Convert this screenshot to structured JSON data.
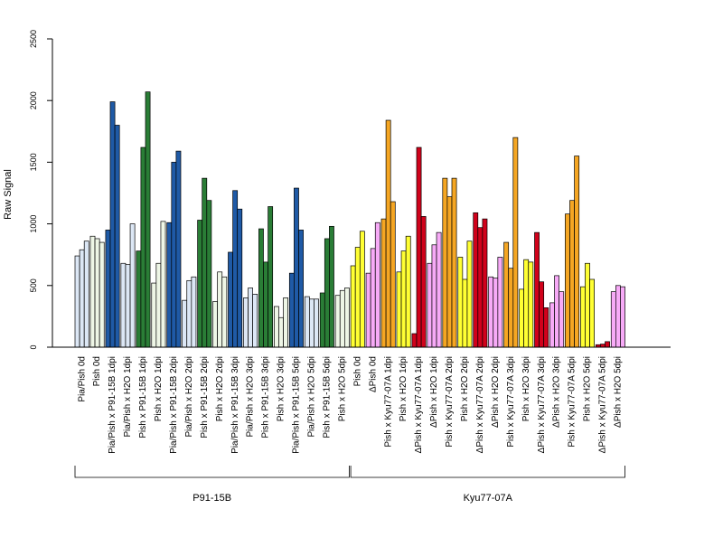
{
  "chart_data": {
    "type": "bar",
    "title": "",
    "ylabel": "Raw Signal",
    "ylim": [
      0,
      2500
    ],
    "yticks": [
      0,
      500,
      1000,
      1500,
      2000,
      2500
    ],
    "grid": false,
    "colors": {
      "light_blue": "#dce7f5",
      "blue": "#1f5aa6",
      "light_green": "#eef6e6",
      "green": "#2a7d36",
      "yellow": "#ffff33",
      "pink": "#f7aaf7",
      "orange": "#f5a623",
      "red": "#d0021b"
    },
    "groups": [
      {
        "label": "Pia/Pish 0d",
        "color": "light_blue",
        "values": [
          740,
          790,
          860
        ]
      },
      {
        "label": "Pish 0d",
        "color": "light_green",
        "values": [
          900,
          880,
          850
        ]
      },
      {
        "label": "Pia/Pish x P91-15B 1dpi",
        "color": "blue",
        "values": [
          950,
          1990,
          1800
        ]
      },
      {
        "label": "Pia/Pish x H2O 1dpi",
        "color": "light_blue",
        "values": [
          680,
          670,
          1000
        ]
      },
      {
        "label": "Pish x P91-15B 1dpi",
        "color": "green",
        "values": [
          780,
          1620,
          2070
        ]
      },
      {
        "label": "Pish x H2O 1dpi",
        "color": "light_green",
        "values": [
          520,
          680,
          1020
        ]
      },
      {
        "label": "Pia/Pish x P91-15B 2dpi",
        "color": "blue",
        "values": [
          1010,
          1500,
          1590
        ]
      },
      {
        "label": "Pia/Pish x H2O 2dpi",
        "color": "light_blue",
        "values": [
          380,
          540,
          570
        ]
      },
      {
        "label": "Pish x P91-15B 2dpi",
        "color": "green",
        "values": [
          1030,
          1370,
          1190
        ]
      },
      {
        "label": "Pish x H2O 2dpi",
        "color": "light_green",
        "values": [
          370,
          610,
          570
        ]
      },
      {
        "label": "Pia/Pish x P91-15B 3dpi",
        "color": "blue",
        "values": [
          770,
          1270,
          1120
        ]
      },
      {
        "label": "Pia/Pish x H2O 3dpi",
        "color": "light_blue",
        "values": [
          400,
          480,
          430
        ]
      },
      {
        "label": "Pish x P91-15B 3dpi",
        "color": "green",
        "values": [
          960,
          690,
          1140
        ]
      },
      {
        "label": "Pish x H2O 3dpi",
        "color": "light_green",
        "values": [
          330,
          240,
          400
        ]
      },
      {
        "label": "Pia/Pish x P91-15B 5dpi",
        "color": "blue",
        "values": [
          600,
          1290,
          950
        ]
      },
      {
        "label": "Pia/Pish x H2O 5dpi",
        "color": "light_blue",
        "values": [
          410,
          390,
          390
        ]
      },
      {
        "label": "Pish x P91-15B 5dpi",
        "color": "green",
        "values": [
          440,
          880,
          980
        ]
      },
      {
        "label": "Pish x H2O 5dpi",
        "color": "light_green",
        "values": [
          420,
          460,
          480
        ]
      },
      {
        "label": "Pish 0d",
        "color": "yellow",
        "values": [
          660,
          810,
          940
        ]
      },
      {
        "label": "ΔPish 0d",
        "color": "pink",
        "values": [
          600,
          800,
          1010
        ]
      },
      {
        "label": "Pish x Kyu77-07A 1dpi",
        "color": "orange",
        "values": [
          1040,
          1840,
          1180
        ]
      },
      {
        "label": "Pish x H2O 1dpi",
        "color": "yellow",
        "values": [
          610,
          780,
          900
        ]
      },
      {
        "label": "ΔPish x Kyu77-07A 1dpi",
        "color": "red",
        "values": [
          110,
          1620,
          1060
        ]
      },
      {
        "label": "ΔPish x H2O 1dpi",
        "color": "pink",
        "values": [
          680,
          830,
          930
        ]
      },
      {
        "label": "Pish x Kyu77-07A 2dpi",
        "color": "orange",
        "values": [
          1370,
          1220,
          1370
        ]
      },
      {
        "label": "Pish x H2O 2dpi",
        "color": "yellow",
        "values": [
          730,
          550,
          860
        ]
      },
      {
        "label": "ΔPish x Kyu77-07A 2dpi",
        "color": "red",
        "values": [
          1090,
          970,
          1040
        ]
      },
      {
        "label": "ΔPish x H2O 2dpi",
        "color": "pink",
        "values": [
          570,
          560,
          730
        ]
      },
      {
        "label": "Pish x Kyu77-07A 3dpi",
        "color": "orange",
        "values": [
          850,
          640,
          1700
        ]
      },
      {
        "label": "Pish x H2O 3dpi",
        "color": "yellow",
        "values": [
          470,
          710,
          690
        ]
      },
      {
        "label": "ΔPish x Kyu77-07A 3dpi",
        "color": "red",
        "values": [
          930,
          530,
          320
        ]
      },
      {
        "label": "ΔPish x H2O 3dpi",
        "color": "pink",
        "values": [
          360,
          580,
          450
        ]
      },
      {
        "label": "Pish x Kyu77-07A 5dpi",
        "color": "orange",
        "values": [
          1080,
          1190,
          1550
        ]
      },
      {
        "label": "Pish x H2O 5dpi",
        "color": "yellow",
        "values": [
          490,
          680,
          550
        ]
      },
      {
        "label": "ΔPish x Kyu77-07A 5dpi",
        "color": "red",
        "values": [
          20,
          25,
          45
        ]
      },
      {
        "label": "ΔPish x H2O 5dpi",
        "color": "pink",
        "values": [
          450,
          500,
          490
        ]
      }
    ],
    "strains": [
      {
        "label": "P91-15B",
        "start": 0,
        "end": 17
      },
      {
        "label": "Kyu77-07A",
        "start": 18,
        "end": 35
      }
    ]
  }
}
